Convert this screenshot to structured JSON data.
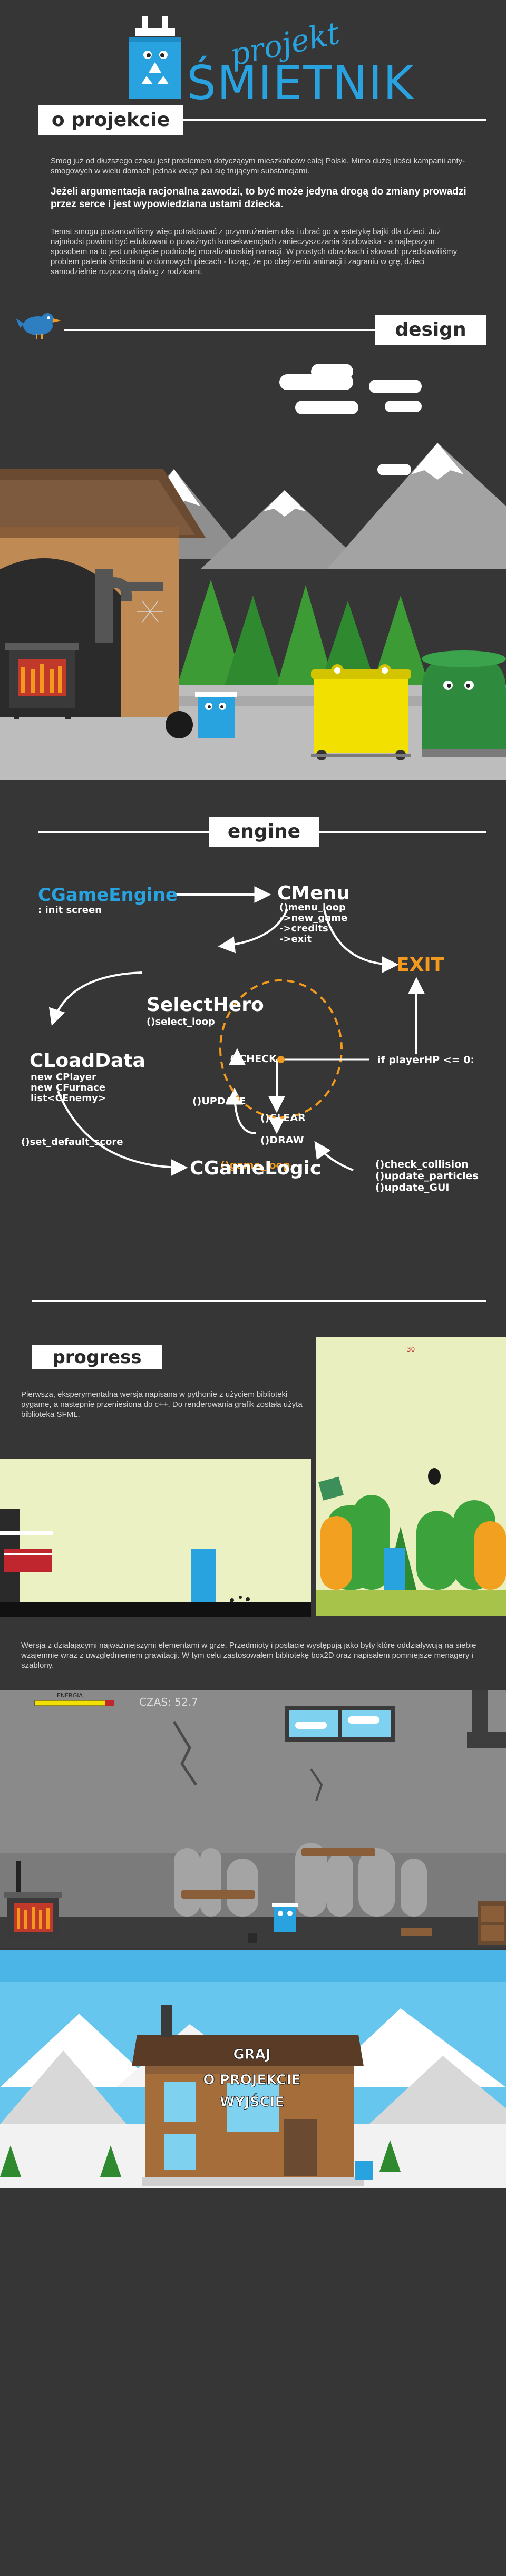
{
  "header": {
    "title_small": "projekt",
    "title_big": "ŚMIETNIK",
    "about_label": "o projekcie",
    "accent_color": "#29a3e0"
  },
  "about": {
    "p1": "Smog już od dłuższego czasu jest problemem dotyczącym mieszkańców całej Polski. Mimo dużej ilości kampanii anty-smogowych w wielu domach jednak wciąż pali się trującymi substancjami.",
    "p2": "Jeżeli argumentacja racjonalna zawodzi, to być może jedyna drogą do zmiany prowadzi przez serce i jest wypowiedziana ustami dziecka.",
    "p3": "Temat smogu postanowiliśmy więc potraktować z przymrużeniem oka i ubrać go w estetykę bajki dla dzieci. Już najmłodsi powinni być edukowani o poważnych konsekwencjach zanieczyszczania środowiska - a najlepszym sposobem na to jest uniknięcie podniosłej moralizatorskiej narracji. W prostych obrazkach i słowach przedstawiliśmy problem palenia śmieciami w domowych piecach - licząc, że po obejrzeniu animacji i zagraniu w grę, dzieci samodzielnie rozpoczną dialog z rodzicami."
  },
  "design": {
    "label": "design"
  },
  "engine": {
    "label": "engine",
    "nodes": {
      "cgameengine": "CGameEngine",
      "init_screen": ": init screen",
      "cmenu": "CMenu",
      "cmenu_items": "()menu_loop\n->new_game\n->credits\n->exit",
      "exit": "EXIT",
      "selecthero": "SelectHero",
      "select_loop": "()select_loop",
      "cloaddata": "CLoadData",
      "cloaddata_items": "new CPlayer\nnew CFurnace\nlist<CEnemy>",
      "check": "()CHECK",
      "update": "()UPDATE",
      "clear": "()CLEAR",
      "draw": "()DRAW",
      "game_loop": "()game_loop",
      "playerhp": "if playerHP <= 0:",
      "set_default_score": "()set_default_score",
      "cgamelogic": "CGameLogic",
      "logic_items": "()check_collision\n()update_particles\n()update_GUI"
    },
    "orange": "#f39a1e",
    "blue": "#29a3e0"
  },
  "progress": {
    "label": "progress",
    "p1": "Pierwsza, eksperymentalna wersja napisana w pythonie z użyciem biblioteki pygame, a następnie przeniesiona do c++. Do renderowania grafik została użyta biblioteka SFML.",
    "score_small": "30",
    "p2": "Wersja z działającymi najważniejszymi elementami w grze. Przedmioty i postacie występują jako byty które oddziaływują na siebie wzajemnie wraz z uwzględnieniem grawitacji. W tym celu zastosowałem bibliotekę box2D oraz napisałem pomniejsze menagery i szablony.",
    "hud_label": "ENERGIA",
    "time_label": "CZAS: 52.7",
    "menu_items": [
      "GRAJ",
      "O PROJEKCIE",
      "WYJŚCIE"
    ]
  }
}
